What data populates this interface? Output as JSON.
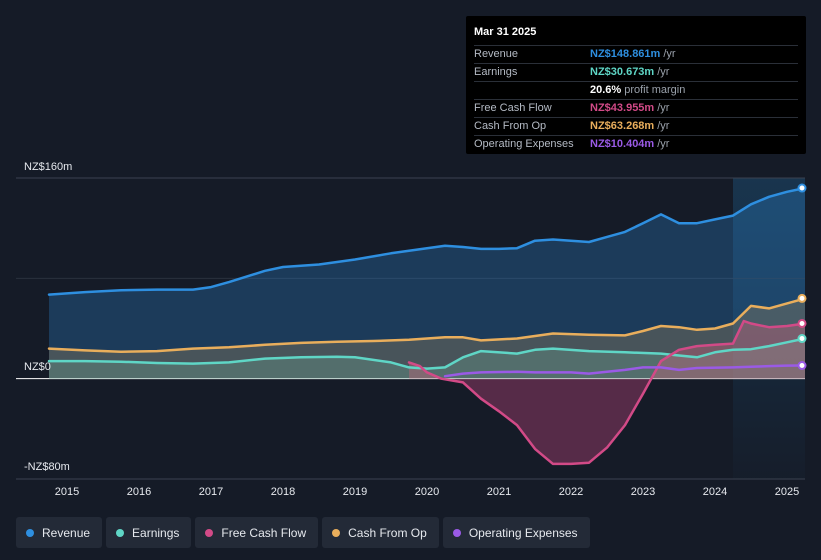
{
  "chart_data": {
    "type": "area",
    "title": "",
    "xlabel": "",
    "ylabel": "",
    "ylim": [
      -80,
      160
    ],
    "y_ticks": [
      {
        "value": 160,
        "label": "NZ$160m"
      },
      {
        "value": 0,
        "label": "NZ$0"
      },
      {
        "value": -80,
        "label": "-NZ$80m"
      }
    ],
    "x_ticks": [
      {
        "value": 2015,
        "label": "2015"
      },
      {
        "value": 2016,
        "label": "2016"
      },
      {
        "value": 2017,
        "label": "2017"
      },
      {
        "value": 2018,
        "label": "2018"
      },
      {
        "value": 2019,
        "label": "2019"
      },
      {
        "value": 2020,
        "label": "2020"
      },
      {
        "value": 2021,
        "label": "2021"
      },
      {
        "value": 2022,
        "label": "2022"
      },
      {
        "value": 2023,
        "label": "2023"
      },
      {
        "value": 2024,
        "label": "2024"
      },
      {
        "value": 2025,
        "label": "2025"
      }
    ],
    "xlim": [
      2014.5,
      2025.25
    ],
    "forecast_start": 2024.25,
    "series": [
      {
        "name": "Revenue",
        "color": "#2e8fe0",
        "fill": true,
        "points": [
          [
            2014.75,
            67
          ],
          [
            2015.25,
            69
          ],
          [
            2015.75,
            70.5
          ],
          [
            2016.25,
            71
          ],
          [
            2016.75,
            71
          ],
          [
            2017.0,
            73
          ],
          [
            2017.25,
            77
          ],
          [
            2017.75,
            86
          ],
          [
            2018.0,
            89
          ],
          [
            2018.5,
            91
          ],
          [
            2019.0,
            95
          ],
          [
            2019.5,
            100
          ],
          [
            2020.0,
            104
          ],
          [
            2020.25,
            106
          ],
          [
            2020.5,
            105
          ],
          [
            2020.75,
            103.5
          ],
          [
            2021.0,
            103.5
          ],
          [
            2021.25,
            104
          ],
          [
            2021.5,
            110
          ],
          [
            2021.75,
            111
          ],
          [
            2022.0,
            110
          ],
          [
            2022.25,
            109
          ],
          [
            2022.5,
            113
          ],
          [
            2022.75,
            117
          ],
          [
            2023.0,
            124
          ],
          [
            2023.25,
            131
          ],
          [
            2023.5,
            124
          ],
          [
            2023.75,
            124
          ],
          [
            2024.0,
            127
          ],
          [
            2024.25,
            130
          ],
          [
            2024.5,
            139
          ],
          [
            2024.75,
            145
          ],
          [
            2025.0,
            149
          ],
          [
            2025.25,
            152
          ]
        ]
      },
      {
        "name": "Earnings",
        "color": "#5fd6c6",
        "fill": true,
        "points": [
          [
            2014.75,
            14
          ],
          [
            2015.25,
            14
          ],
          [
            2015.75,
            13.5
          ],
          [
            2016.25,
            12.5
          ],
          [
            2016.75,
            12
          ],
          [
            2017.25,
            13
          ],
          [
            2017.75,
            16
          ],
          [
            2018.25,
            17
          ],
          [
            2018.75,
            17.5
          ],
          [
            2019.0,
            17
          ],
          [
            2019.5,
            13
          ],
          [
            2019.75,
            9
          ],
          [
            2020.0,
            8
          ],
          [
            2020.25,
            9
          ],
          [
            2020.5,
            17
          ],
          [
            2020.75,
            22
          ],
          [
            2021.25,
            20
          ],
          [
            2021.5,
            23
          ],
          [
            2021.75,
            24
          ],
          [
            2022.25,
            22
          ],
          [
            2022.75,
            21
          ],
          [
            2023.25,
            20
          ],
          [
            2023.5,
            18.5
          ],
          [
            2023.75,
            17
          ],
          [
            2024.0,
            21
          ],
          [
            2024.25,
            23
          ],
          [
            2024.5,
            23.5
          ],
          [
            2024.75,
            26
          ],
          [
            2025.0,
            29
          ],
          [
            2025.25,
            32
          ]
        ]
      },
      {
        "name": "Free Cash Flow",
        "color": "#d24a87",
        "fill": true,
        "points": [
          [
            2019.75,
            13
          ],
          [
            2019.9,
            10
          ],
          [
            2020.0,
            5
          ],
          [
            2020.2,
            0
          ],
          [
            2020.5,
            -3
          ],
          [
            2020.75,
            -16
          ],
          [
            2021.0,
            -26
          ],
          [
            2021.25,
            -37
          ],
          [
            2021.5,
            -56
          ],
          [
            2021.75,
            -68
          ],
          [
            2022.0,
            -68
          ],
          [
            2022.25,
            -67
          ],
          [
            2022.5,
            -55
          ],
          [
            2022.75,
            -37
          ],
          [
            2023.0,
            -12
          ],
          [
            2023.25,
            14
          ],
          [
            2023.5,
            23
          ],
          [
            2023.75,
            26
          ],
          [
            2024.0,
            27
          ],
          [
            2024.25,
            28
          ],
          [
            2024.4,
            46
          ],
          [
            2024.5,
            44
          ],
          [
            2024.75,
            41
          ],
          [
            2025.0,
            42
          ],
          [
            2025.25,
            44
          ]
        ]
      },
      {
        "name": "Cash From Op",
        "color": "#e9ae5c",
        "fill": true,
        "points": [
          [
            2014.75,
            24
          ],
          [
            2015.25,
            22.5
          ],
          [
            2015.75,
            21.5
          ],
          [
            2016.25,
            22
          ],
          [
            2016.75,
            24
          ],
          [
            2017.25,
            25
          ],
          [
            2017.75,
            27
          ],
          [
            2018.25,
            28.5
          ],
          [
            2018.75,
            29.5
          ],
          [
            2019.25,
            30
          ],
          [
            2019.75,
            31
          ],
          [
            2020.0,
            32
          ],
          [
            2020.25,
            33
          ],
          [
            2020.5,
            33
          ],
          [
            2020.75,
            30.5
          ],
          [
            2021.25,
            32
          ],
          [
            2021.5,
            34
          ],
          [
            2021.75,
            36
          ],
          [
            2022.25,
            35
          ],
          [
            2022.75,
            34.5
          ],
          [
            2023.0,
            38
          ],
          [
            2023.25,
            42
          ],
          [
            2023.5,
            41
          ],
          [
            2023.75,
            39
          ],
          [
            2024.0,
            40
          ],
          [
            2024.25,
            44
          ],
          [
            2024.5,
            58
          ],
          [
            2024.75,
            56
          ],
          [
            2025.0,
            60
          ],
          [
            2025.25,
            64
          ]
        ]
      },
      {
        "name": "Operating Expenses",
        "color": "#9a5ae6",
        "fill": false,
        "points": [
          [
            2020.25,
            2
          ],
          [
            2020.5,
            4
          ],
          [
            2020.75,
            5
          ],
          [
            2021.25,
            5.5
          ],
          [
            2021.5,
            5
          ],
          [
            2022.0,
            5
          ],
          [
            2022.25,
            4
          ],
          [
            2022.5,
            5.5
          ],
          [
            2022.75,
            7
          ],
          [
            2023.0,
            9
          ],
          [
            2023.25,
            9
          ],
          [
            2023.5,
            7
          ],
          [
            2023.75,
            8.5
          ],
          [
            2024.25,
            9
          ],
          [
            2024.5,
            9.5
          ],
          [
            2024.75,
            10
          ],
          [
            2025.0,
            10.4
          ],
          [
            2025.25,
            10.5
          ]
        ]
      }
    ]
  },
  "tooltip": {
    "date": "Mar 31 2025",
    "rows": [
      {
        "label": "Revenue",
        "value": "NZ$148.861m",
        "unit": "/yr",
        "color": "#2e8fe0"
      },
      {
        "label": "Earnings",
        "value": "NZ$30.673m",
        "unit": "/yr",
        "color": "#5fd6c6"
      },
      {
        "label": "",
        "value": "20.6%",
        "unit": "profit margin",
        "color": "#ffffff"
      },
      {
        "label": "Free Cash Flow",
        "value": "NZ$43.955m",
        "unit": "/yr",
        "color": "#d24a87"
      },
      {
        "label": "Cash From Op",
        "value": "NZ$63.268m",
        "unit": "/yr",
        "color": "#e9ae5c"
      },
      {
        "label": "Operating Expenses",
        "value": "NZ$10.404m",
        "unit": "/yr",
        "color": "#9a5ae6"
      }
    ]
  },
  "legend": [
    {
      "label": "Revenue",
      "color": "#2e8fe0"
    },
    {
      "label": "Earnings",
      "color": "#5fd6c6"
    },
    {
      "label": "Free Cash Flow",
      "color": "#d24a87"
    },
    {
      "label": "Cash From Op",
      "color": "#e9ae5c"
    },
    {
      "label": "Operating Expenses",
      "color": "#9a5ae6"
    }
  ]
}
